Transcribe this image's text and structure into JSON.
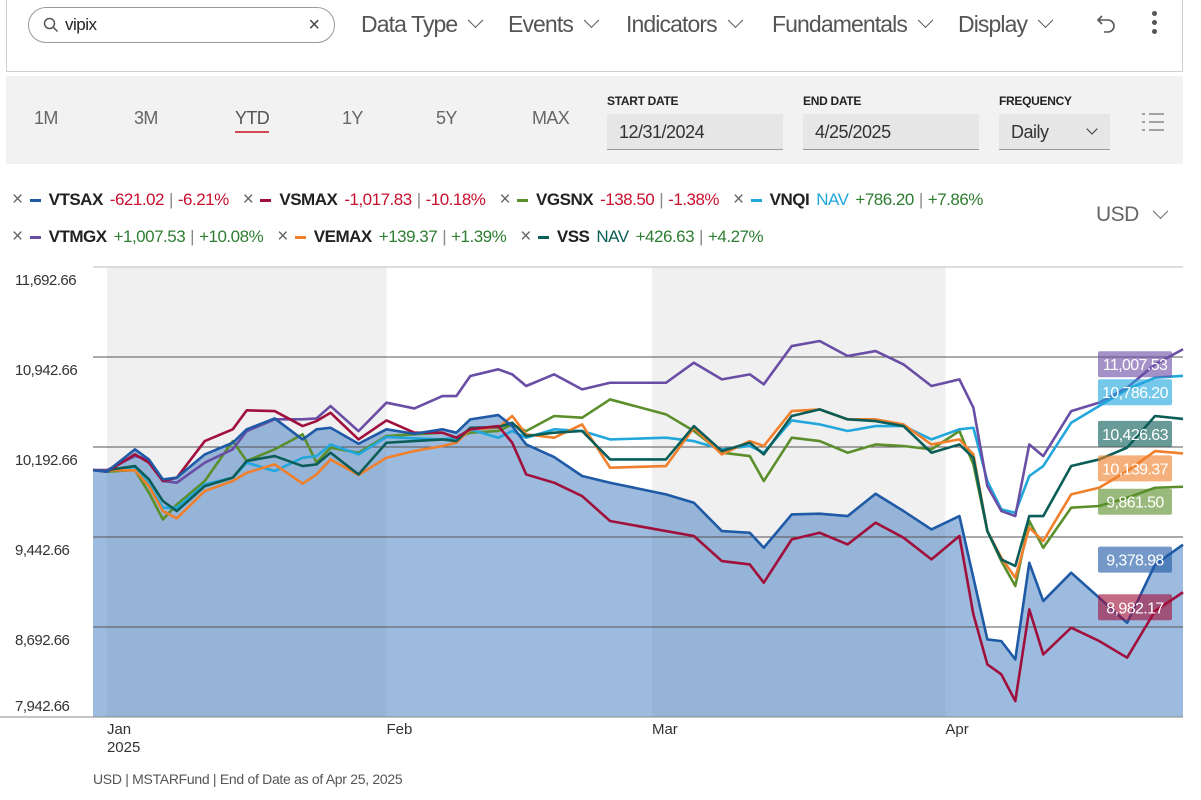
{
  "toolbar": {
    "search_value": "vipix",
    "menus": [
      "Data Type",
      "Events",
      "Indicators",
      "Fundamentals",
      "Display"
    ]
  },
  "controls": {
    "periods": [
      "1M",
      "3M",
      "YTD",
      "1Y",
      "5Y",
      "MAX"
    ],
    "active_period": "YTD",
    "start_date_label": "START DATE",
    "start_date": "12/31/2024",
    "end_date_label": "END DATE",
    "end_date": "4/25/2025",
    "frequency_label": "FREQUENCY",
    "frequency": "Daily"
  },
  "legend": [
    {
      "ticker": "VTSAX",
      "nav": "",
      "change": "-621.02",
      "pct": "-6.21%",
      "color": "#1f5aa6"
    },
    {
      "ticker": "VSMAX",
      "nav": "",
      "change": "-1,017.83",
      "pct": "-10.18%",
      "color": "#a0103c"
    },
    {
      "ticker": "VGSNX",
      "nav": "",
      "change": "-138.50",
      "pct": "-1.38%",
      "color": "#5a8f2c"
    },
    {
      "ticker": "VNQI",
      "nav": "NAV",
      "change": "+786.20",
      "pct": "+7.86%",
      "color": "#22a7dd"
    },
    {
      "ticker": "VTMGX",
      "nav": "",
      "change": "+1,007.53",
      "pct": "+10.08%",
      "color": "#6a4ea5"
    },
    {
      "ticker": "VEMAX",
      "nav": "",
      "change": "+139.37",
      "pct": "+1.39%",
      "color": "#f0802c"
    },
    {
      "ticker": "VSS",
      "nav": "NAV",
      "change": "+426.63",
      "pct": "+4.27%",
      "color": "#0b5d58"
    }
  ],
  "colors": {
    "negative": "#c8102e",
    "positive": "#2e7d32",
    "area_fill": "#3c78be",
    "period_underline": "#d24b54"
  },
  "currency": "USD",
  "footer": "USD | MSTARFund | End of Date as of Apr 25, 2025",
  "chart_data": {
    "type": "line",
    "y_ticks": [
      "11,692.66",
      "10,942.66",
      "10,192.66",
      "9,442.66",
      "8,692.66",
      "7,942.66"
    ],
    "ylim": [
      7942.66,
      11692.66
    ],
    "x_ticks": [
      {
        "label": "Jan",
        "sub": "2025",
        "date": "2025-01-02"
      },
      {
        "label": "Feb",
        "date": "2025-02-03"
      },
      {
        "label": "Mar",
        "date": "2025-03-03"
      },
      {
        "label": "Apr",
        "date": "2025-04-01"
      }
    ],
    "shaded_months": [
      "2025-01",
      "2025-03"
    ],
    "area_series": "VTSAX",
    "x": [
      "2024-12-31",
      "2025-01-02",
      "2025-01-06",
      "2025-01-07",
      "2025-01-08",
      "2025-01-10",
      "2025-01-14",
      "2025-01-16",
      "2025-01-17",
      "2025-01-22",
      "2025-01-24",
      "2025-01-27",
      "2025-01-28",
      "2025-01-30",
      "2025-02-03",
      "2025-02-05",
      "2025-02-07",
      "2025-02-10",
      "2025-02-11",
      "2025-02-13",
      "2025-02-14",
      "2025-02-18",
      "2025-02-20",
      "2025-02-24",
      "2025-02-26",
      "2025-03-04",
      "2025-03-06",
      "2025-03-10",
      "2025-03-12",
      "2025-03-13",
      "2025-03-17",
      "2025-03-19",
      "2025-03-21",
      "2025-03-25",
      "2025-03-27",
      "2025-03-31",
      "2025-04-02",
      "2025-04-03",
      "2025-04-04",
      "2025-04-07",
      "2025-04-08",
      "2025-04-09",
      "2025-04-10",
      "2025-04-14",
      "2025-04-16",
      "2025-04-21",
      "2025-04-23",
      "2025-04-25"
    ],
    "series": [
      {
        "name": "VTSAX",
        "end_label": "9,378.98",
        "color": "#1f5aa6",
        "values": [
          10000,
          9987,
          10173,
          10089,
          9923,
          9937,
          10131,
          10228,
          10340,
          10431,
          10256,
          10340,
          10353,
          10220,
          10340,
          10303,
          10340,
          10312,
          10423,
          10459,
          10367,
          10214,
          10109,
          9951,
          9895,
          9798,
          9728,
          9492,
          9478,
          9353,
          9631,
          9637,
          9617,
          9803,
          9659,
          9506,
          9617,
          9103,
          8589,
          8575,
          8423,
          9228,
          8909,
          9145,
          8937,
          8728,
          9214,
          9378.98
        ]
      },
      {
        "name": "VSMAX",
        "end_label": "8,982.17",
        "color": "#a0103c",
        "values": [
          10000,
          9987,
          10131,
          10062,
          9909,
          9937,
          10242,
          10340,
          10498,
          10492,
          10367,
          10409,
          10478,
          10256,
          10414,
          10312,
          10312,
          10270,
          10340,
          10367,
          10228,
          9964,
          9895,
          9784,
          9576,
          9492,
          9451,
          9242,
          9214,
          9062,
          9423,
          9478,
          9381,
          9562,
          9437,
          9256,
          9451,
          8798,
          8381,
          8298,
          8075,
          8839,
          8464,
          8687,
          8576,
          8437,
          8826,
          8982.17
        ]
      },
      {
        "name": "VGSNX",
        "end_label": "9,861.50",
        "color": "#5a8f2c",
        "values": [
          10000,
          9987,
          10000,
          9812,
          9589,
          9714,
          9909,
          10242,
          10076,
          10173,
          10298,
          10062,
          10187,
          10145,
          10284,
          10298,
          10312,
          10270,
          10312,
          10326,
          10381,
          10326,
          10451,
          10437,
          10589,
          10465,
          10326,
          10145,
          10117,
          9909,
          10270,
          10242,
          10145,
          10214,
          10201,
          10173,
          10326,
          10048,
          9492,
          9242,
          9034,
          9576,
          9353,
          9687,
          9701,
          9770,
          9853,
          9861.5
        ]
      },
      {
        "name": "VNQI",
        "end_label": "10,786.20",
        "color": "#22a7dd",
        "values": [
          10000,
          10000,
          10026,
          9881,
          9687,
          9687,
          9881,
          9937,
          10062,
          9992,
          10103,
          10117,
          10214,
          10131,
          10276,
          10265,
          10256,
          10270,
          10340,
          10270,
          10326,
          10270,
          10340,
          10326,
          10256,
          10270,
          10242,
          10173,
          10201,
          10145,
          10414,
          10381,
          10326,
          10367,
          10367,
          10256,
          10340,
          10353,
          9909,
          9673,
          9645,
          9951,
          10034,
          10395,
          10534,
          10673,
          10770,
          10786.2
        ]
      },
      {
        "name": "VTMGX",
        "end_label": "11,007.53",
        "color": "#6a4ea5",
        "values": [
          10000,
          10000,
          10117,
          10089,
          9909,
          9895,
          10062,
          10173,
          10325,
          10423,
          10423,
          10431,
          10534,
          10325,
          10562,
          10514,
          10617,
          10617,
          10784,
          10840,
          10798,
          10701,
          10798,
          10673,
          10728,
          10728,
          10895,
          10756,
          10798,
          10715,
          11034,
          11076,
          10951,
          10992,
          10881,
          10701,
          10756,
          10520,
          9867,
          9659,
          9617,
          10214,
          10117,
          10492,
          10562,
          10687,
          10881,
          11007.53
        ]
      },
      {
        "name": "VEMAX",
        "end_label": "10,139.37",
        "color": "#f0802c",
        "values": [
          10000,
          10000,
          9998,
          9867,
          9659,
          9598,
          9826,
          9909,
          9978,
          10048,
          9887,
          9964,
          10089,
          9959,
          10103,
          10159,
          10201,
          10228,
          10340,
          10353,
          10451,
          10298,
          10270,
          10381,
          10020,
          10034,
          10353,
          10131,
          10242,
          10201,
          10492,
          10506,
          10423,
          10423,
          10381,
          10214,
          10256,
          10131,
          9492,
          9270,
          9103,
          9520,
          9409,
          9798,
          9853,
          9992,
          10159,
          10139.37
        ]
      },
      {
        "name": "VSS",
        "end_label": "10,426.63",
        "color": "#0b5d58",
        "values": [
          10000,
          10000,
          10034,
          9923,
          9742,
          9659,
          9867,
          9937,
          10076,
          10117,
          10034,
          10048,
          10145,
          9964,
          10228,
          10242,
          10256,
          10242,
          10353,
          10359,
          10395,
          10284,
          10312,
          10326,
          10089,
          10089,
          10367,
          10159,
          10228,
          10131,
          10451,
          10506,
          10423,
          10409,
          10367,
          10145,
          10214,
          10103,
          9492,
          9256,
          9201,
          9617,
          9617,
          10034,
          10089,
          10187,
          10451,
          10426.63
        ]
      }
    ]
  }
}
